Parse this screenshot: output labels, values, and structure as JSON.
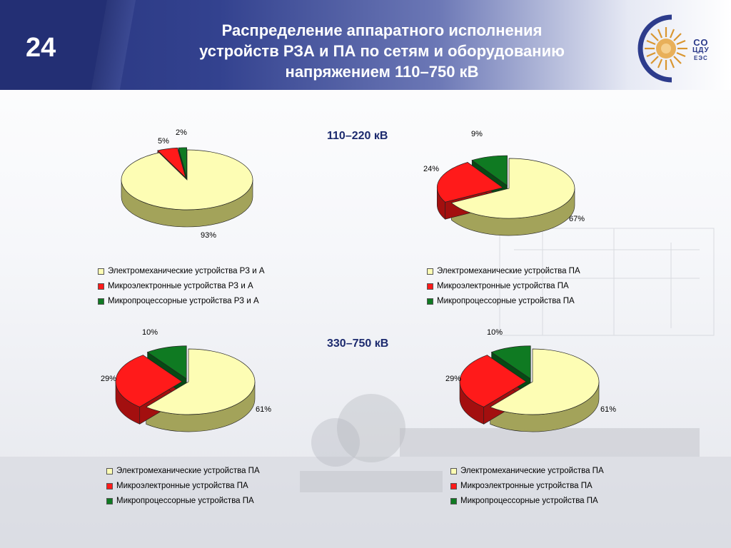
{
  "slide": {
    "number": "24",
    "title_lines": [
      "Распределение аппаратного исполнения",
      "устройств РЗА и ПА по сетям и оборудованию",
      "напряжением 110–750 кВ"
    ],
    "logo": {
      "line1": "СО",
      "line2": "ЦДУ",
      "line3": "ЕЭС"
    }
  },
  "colors": {
    "electromechanical": "#fdfdb4",
    "microelectronic": "#ff1a1a",
    "microprocessor": "#0f7a22"
  },
  "sections": [
    {
      "title": "110–220 кВ"
    },
    {
      "title": "330–750 кВ"
    }
  ],
  "chart_data": [
    {
      "type": "pie",
      "section": "110–220 кВ",
      "categories": [
        "Электромеханические устройства РЗ и А",
        "Микроэлектронные устройства РЗ и А",
        "Микропроцессорные устройства РЗ и А"
      ],
      "values": [
        93,
        5,
        2
      ],
      "labels": [
        "93%",
        "5%",
        "2%"
      ],
      "legend_placement": "below"
    },
    {
      "type": "pie",
      "section": "110–220 кВ",
      "categories": [
        "Электромеханические устройства ПА",
        "Микроэлектронные устройства ПА",
        "Микропроцессорные устройства ПА"
      ],
      "values": [
        67,
        24,
        9
      ],
      "labels": [
        "67%",
        "24%",
        "9%"
      ],
      "legend_placement": "below"
    },
    {
      "type": "pie",
      "section": "330–750 кВ",
      "categories": [
        "Электромеханические устройства ПА",
        "Микроэлектронные устройства ПА",
        "Микропроцессорные устройства ПА"
      ],
      "values": [
        61,
        29,
        10
      ],
      "labels": [
        "61%",
        "29%",
        "10%"
      ],
      "legend_placement": "below"
    },
    {
      "type": "pie",
      "section": "330–750 кВ",
      "categories": [
        "Электромеханические устройства ПА",
        "Микроэлектронные устройства ПА",
        "Микропроцессорные устройства ПА"
      ],
      "values": [
        61,
        29,
        10
      ],
      "labels": [
        "61%",
        "29%",
        "10%"
      ],
      "legend_placement": "below"
    }
  ]
}
